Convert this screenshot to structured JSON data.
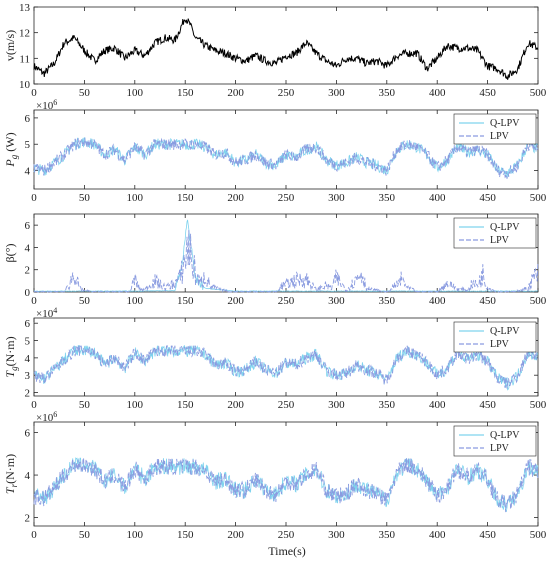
{
  "x_axis_label": "Time(s)",
  "x_ticks": [
    0,
    50,
    100,
    150,
    200,
    250,
    300,
    350,
    400,
    450,
    500
  ],
  "legend": [
    "Q-LPV",
    "LPV"
  ],
  "colors": {
    "qlpv": "#7fd3ee",
    "lpv": "#8a9be0",
    "wind": "#000000"
  },
  "panels": [
    {
      "ylabel": "v(m/s)",
      "exponent": "",
      "yticks": [
        "10",
        "11",
        "12",
        "13"
      ],
      "ylim": [
        10,
        13
      ],
      "legend": false
    },
    {
      "ylabel": "P",
      "ylabel_sub": "g",
      "ylabel_unit": " (W)",
      "exponent": "×10",
      "exponent_pow": "6",
      "yticks": [
        "4",
        "5",
        "6"
      ],
      "ylim": [
        3.3,
        6.3
      ],
      "legend": true
    },
    {
      "ylabel": "β(°)",
      "exponent": "",
      "yticks": [
        "0",
        "2",
        "4",
        "6"
      ],
      "ylim": [
        0,
        7
      ],
      "legend": true
    },
    {
      "ylabel": "T",
      "ylabel_sub": "g",
      "ylabel_unit": "(N·m)",
      "exponent": "×10",
      "exponent_pow": "4",
      "yticks": [
        "2",
        "3",
        "4",
        "5",
        "6"
      ],
      "ylim": [
        1.8,
        6.3
      ],
      "legend": true
    },
    {
      "ylabel": "T",
      "ylabel_sub": "r",
      "ylabel_unit": "(N·m)",
      "exponent": "×10",
      "exponent_pow": "6",
      "yticks": [
        "2",
        "4",
        "6"
      ],
      "ylim": [
        1.6,
        6.5
      ],
      "legend": true
    }
  ],
  "chart_data": [
    {
      "type": "line",
      "ylabel": "v(m/s)",
      "xlabel": "",
      "xlim": [
        0,
        500
      ],
      "ylim": [
        10,
        13
      ],
      "series": [
        {
          "values_x": [
            0,
            10,
            20,
            30,
            40,
            50,
            60,
            70,
            80,
            90,
            100,
            110,
            120,
            130,
            140,
            150,
            155,
            160,
            170,
            180,
            190,
            200,
            210,
            220,
            230,
            240,
            250,
            260,
            270,
            280,
            290,
            300,
            310,
            320,
            330,
            340,
            350,
            360,
            370,
            380,
            390,
            400,
            410,
            420,
            430,
            440,
            450,
            460,
            470,
            480,
            490,
            500
          ],
          "values_y": [
            10.7,
            10.4,
            10.8,
            11.6,
            11.8,
            11.3,
            10.9,
            11.3,
            11.4,
            11.0,
            11.3,
            11.1,
            11.6,
            11.8,
            11.7,
            12.6,
            12.3,
            11.8,
            11.5,
            11.3,
            11.2,
            11.0,
            10.9,
            11.1,
            10.9,
            10.8,
            11.1,
            11.2,
            11.6,
            11.2,
            10.9,
            10.7,
            11.0,
            11.0,
            10.8,
            10.9,
            10.7,
            11.1,
            11.2,
            11.2,
            10.6,
            11.0,
            11.5,
            11.4,
            11.4,
            11.3,
            10.7,
            10.6,
            10.3,
            10.6,
            11.6,
            11.4
          ]
        }
      ]
    },
    {
      "type": "line",
      "ylabel": "Pg (W) ×10^6",
      "xlabel": "",
      "xlim": [
        0,
        500
      ],
      "ylim": [
        3.3,
        6.3
      ],
      "series": [
        {
          "name": "Q-LPV",
          "values_x": [
            0,
            10,
            20,
            30,
            40,
            50,
            60,
            70,
            80,
            90,
            100,
            110,
            120,
            130,
            140,
            150,
            160,
            170,
            180,
            190,
            200,
            210,
            220,
            230,
            240,
            250,
            260,
            270,
            280,
            290,
            300,
            310,
            320,
            330,
            340,
            350,
            360,
            370,
            380,
            390,
            400,
            410,
            420,
            430,
            440,
            450,
            460,
            470,
            480,
            490,
            500
          ],
          "values_y": [
            4.1,
            4.0,
            4.3,
            4.6,
            5.0,
            5.1,
            5.0,
            4.6,
            4.8,
            4.4,
            4.9,
            4.6,
            5.0,
            5.0,
            5.0,
            5.0,
            5.0,
            4.9,
            4.6,
            4.7,
            4.3,
            4.4,
            4.6,
            4.3,
            4.2,
            4.6,
            4.5,
            4.8,
            4.9,
            4.4,
            4.2,
            4.3,
            4.5,
            4.3,
            4.2,
            4.0,
            4.8,
            5.0,
            4.9,
            4.6,
            4.1,
            4.4,
            4.9,
            4.7,
            4.8,
            4.6,
            4.0,
            3.9,
            4.2,
            5.0,
            4.8
          ]
        },
        {
          "name": "LPV",
          "values_x": [
            0,
            10,
            20,
            30,
            40,
            50,
            60,
            70,
            80,
            90,
            100,
            110,
            120,
            130,
            140,
            150,
            160,
            170,
            180,
            190,
            200,
            210,
            220,
            230,
            240,
            250,
            260,
            270,
            280,
            290,
            300,
            310,
            320,
            330,
            340,
            350,
            360,
            370,
            380,
            390,
            400,
            410,
            420,
            430,
            440,
            450,
            460,
            470,
            480,
            490,
            500
          ],
          "values_y": [
            4.1,
            4.0,
            4.3,
            4.6,
            5.0,
            5.1,
            5.0,
            4.6,
            4.8,
            4.4,
            4.9,
            4.6,
            5.0,
            5.0,
            5.0,
            5.0,
            5.0,
            4.9,
            4.6,
            4.7,
            4.3,
            4.4,
            4.6,
            4.3,
            4.2,
            4.6,
            4.5,
            4.8,
            4.9,
            4.4,
            4.2,
            4.3,
            4.5,
            4.3,
            4.2,
            4.0,
            4.8,
            5.0,
            4.9,
            4.6,
            4.1,
            4.4,
            4.9,
            4.7,
            4.8,
            4.6,
            4.0,
            3.9,
            4.2,
            5.0,
            4.8
          ]
        }
      ]
    },
    {
      "type": "line",
      "ylabel": "β(°)",
      "xlabel": "",
      "xlim": [
        0,
        500
      ],
      "ylim": [
        0,
        7
      ],
      "series": [
        {
          "name": "Q-LPV",
          "values_x": [
            0,
            100,
            140,
            148,
            152,
            156,
            160,
            170,
            200,
            300,
            500
          ],
          "values_y": [
            0.05,
            0.05,
            0.1,
            3.0,
            6.6,
            4.0,
            1.2,
            0.3,
            0.05,
            0.05,
            0.05
          ]
        },
        {
          "name": "LPV",
          "values_x": [
            0,
            30,
            35,
            40,
            45,
            50,
            60,
            95,
            100,
            105,
            110,
            120,
            130,
            140,
            145,
            150,
            153,
            156,
            160,
            165,
            170,
            175,
            180,
            190,
            200,
            240,
            245,
            260,
            270,
            280,
            290,
            295,
            300,
            310,
            320,
            325,
            330,
            350,
            360,
            365,
            370,
            380,
            390,
            400,
            410,
            420,
            430,
            435,
            440,
            445,
            450,
            460,
            470,
            480,
            490,
            495,
            500
          ],
          "values_y": [
            0,
            0,
            1.0,
            2.8,
            0.5,
            0.2,
            0.1,
            0,
            1.8,
            0.4,
            0.3,
            1.5,
            0.6,
            1.2,
            2.0,
            4.6,
            6.5,
            4.8,
            2.5,
            1.2,
            2.2,
            0.8,
            0.5,
            0.2,
            0,
            0,
            0.8,
            1.6,
            1.8,
            0.3,
            0.9,
            0.5,
            2.0,
            0.2,
            1.8,
            2.8,
            0.5,
            0,
            1.0,
            1.8,
            0.6,
            0.1,
            0,
            0,
            1.2,
            0.5,
            0.2,
            1.2,
            0.9,
            2.5,
            0.6,
            0,
            0,
            0.2,
            0.5,
            1.8,
            2.5
          ]
        }
      ]
    },
    {
      "type": "line",
      "ylabel": "Tg (N·m) ×10^4",
      "xlabel": "",
      "xlim": [
        0,
        500
      ],
      "ylim": [
        1.8,
        6.3
      ],
      "series": [
        {
          "name": "Q-LPV",
          "values_x": [
            0,
            10,
            20,
            30,
            40,
            50,
            60,
            70,
            80,
            90,
            100,
            110,
            120,
            130,
            140,
            150,
            160,
            170,
            180,
            190,
            200,
            210,
            220,
            230,
            240,
            250,
            260,
            270,
            280,
            290,
            300,
            310,
            320,
            330,
            340,
            350,
            360,
            370,
            380,
            390,
            400,
            410,
            420,
            430,
            440,
            450,
            460,
            470,
            480,
            490,
            500
          ],
          "values_y": [
            3.0,
            2.8,
            3.3,
            3.9,
            4.4,
            4.5,
            4.3,
            3.6,
            4.0,
            3.4,
            4.3,
            3.8,
            4.4,
            4.4,
            4.4,
            4.4,
            4.4,
            4.2,
            3.6,
            3.7,
            3.2,
            3.3,
            3.8,
            3.3,
            3.1,
            3.7,
            3.6,
            4.0,
            4.2,
            3.3,
            3.0,
            3.1,
            3.6,
            3.3,
            3.1,
            2.7,
            4.0,
            4.4,
            4.2,
            3.7,
            3.0,
            3.4,
            4.3,
            3.9,
            4.2,
            3.8,
            2.8,
            2.5,
            3.0,
            4.3,
            4.1
          ]
        },
        {
          "name": "LPV",
          "values_x": [
            0,
            10,
            20,
            30,
            40,
            50,
            60,
            70,
            80,
            90,
            100,
            110,
            120,
            130,
            140,
            150,
            160,
            170,
            180,
            190,
            200,
            210,
            220,
            230,
            240,
            250,
            260,
            270,
            280,
            290,
            300,
            310,
            320,
            330,
            340,
            350,
            360,
            370,
            380,
            390,
            400,
            410,
            420,
            430,
            440,
            450,
            460,
            470,
            480,
            490,
            500
          ],
          "values_y": [
            3.0,
            2.8,
            3.3,
            3.9,
            4.4,
            4.5,
            4.3,
            3.6,
            4.0,
            3.4,
            4.3,
            3.8,
            4.4,
            4.4,
            4.4,
            4.4,
            4.4,
            4.2,
            3.6,
            3.7,
            3.2,
            3.3,
            3.8,
            3.3,
            3.1,
            3.7,
            3.6,
            4.0,
            4.2,
            3.3,
            3.0,
            3.1,
            3.6,
            3.3,
            3.1,
            2.7,
            4.0,
            4.4,
            4.2,
            3.7,
            3.0,
            3.4,
            4.3,
            3.9,
            4.2,
            3.8,
            2.8,
            2.5,
            3.0,
            4.3,
            4.1
          ]
        }
      ]
    },
    {
      "type": "line",
      "ylabel": "Tr (N·m) ×10^6",
      "xlabel": "Time(s)",
      "xlim": [
        0,
        500
      ],
      "ylim": [
        1.6,
        6.5
      ],
      "series": [
        {
          "name": "Q-LPV",
          "values_x": [
            0,
            10,
            20,
            30,
            40,
            50,
            60,
            70,
            80,
            90,
            100,
            110,
            120,
            130,
            140,
            150,
            160,
            170,
            180,
            190,
            200,
            210,
            220,
            230,
            240,
            250,
            260,
            270,
            280,
            290,
            300,
            310,
            320,
            330,
            340,
            350,
            360,
            370,
            380,
            390,
            400,
            410,
            420,
            430,
            440,
            450,
            460,
            470,
            480,
            490,
            500
          ],
          "values_y": [
            3.0,
            2.9,
            3.4,
            4.0,
            4.5,
            4.5,
            4.3,
            3.7,
            4.0,
            3.4,
            4.3,
            3.8,
            4.4,
            4.4,
            4.4,
            4.4,
            4.4,
            4.2,
            3.7,
            3.8,
            3.3,
            3.3,
            3.8,
            3.3,
            3.1,
            3.7,
            3.6,
            4.0,
            4.3,
            3.3,
            3.0,
            3.1,
            3.6,
            3.3,
            3.1,
            2.8,
            4.1,
            4.5,
            4.3,
            3.7,
            3.0,
            3.4,
            4.3,
            3.9,
            4.2,
            3.8,
            2.8,
            2.6,
            3.1,
            4.4,
            4.2
          ]
        },
        {
          "name": "LPV",
          "values_x": [
            0,
            10,
            20,
            30,
            40,
            50,
            60,
            70,
            80,
            90,
            100,
            110,
            120,
            130,
            140,
            150,
            160,
            170,
            180,
            190,
            200,
            210,
            220,
            230,
            240,
            250,
            260,
            270,
            280,
            290,
            300,
            310,
            320,
            330,
            340,
            350,
            360,
            370,
            380,
            390,
            400,
            410,
            420,
            430,
            440,
            450,
            460,
            470,
            480,
            490,
            500
          ],
          "values_y": [
            3.0,
            2.9,
            3.4,
            4.0,
            4.5,
            4.5,
            4.3,
            3.7,
            4.0,
            3.4,
            4.3,
            3.8,
            4.4,
            4.4,
            4.4,
            4.4,
            4.4,
            4.2,
            3.7,
            3.8,
            3.3,
            3.3,
            3.8,
            3.3,
            3.1,
            3.7,
            3.6,
            4.0,
            4.3,
            3.3,
            3.0,
            3.1,
            3.6,
            3.3,
            3.1,
            2.8,
            4.1,
            4.5,
            4.3,
            3.7,
            3.0,
            3.4,
            4.3,
            3.9,
            4.2,
            3.8,
            2.8,
            2.6,
            3.1,
            4.4,
            4.2
          ]
        }
      ]
    }
  ]
}
